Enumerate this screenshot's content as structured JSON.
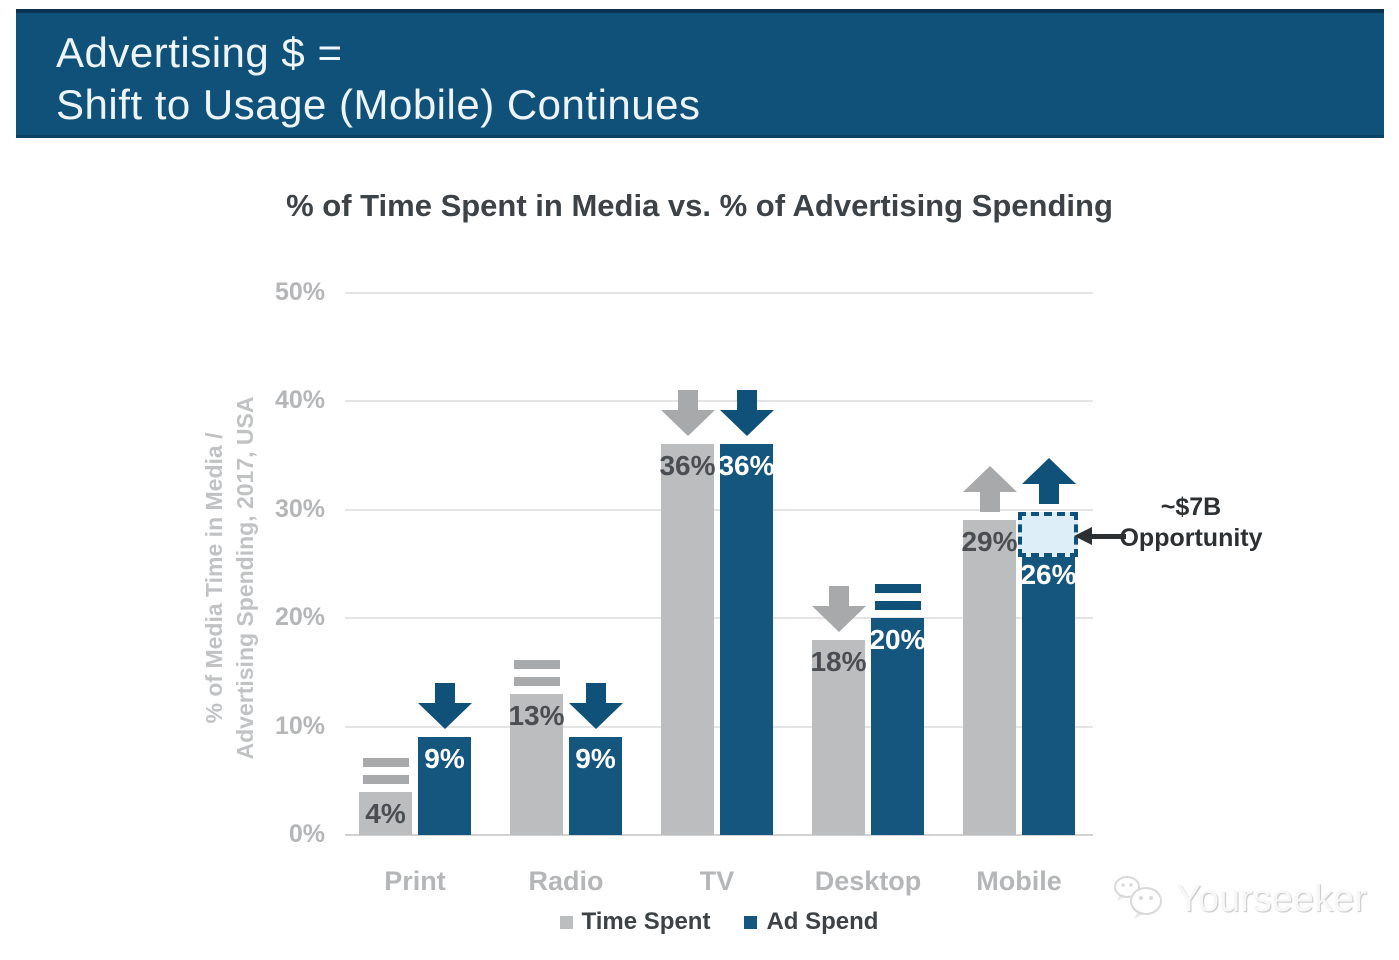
{
  "header": {
    "title_line1": "Advertising $ =",
    "title_line2": "Shift to Usage (Mobile) Continues",
    "background_color": "#0f5179"
  },
  "chart_data": {
    "type": "bar",
    "title": "% of Time Spent in Media vs. % of Advertising Spending",
    "ylabel": "% of Media Time in Media / Advertising Spending, 2017, USA",
    "ylabel_lines": [
      "% of Media Time in Media /",
      "Advertising Spending, 2017, USA"
    ],
    "categories": [
      "Print",
      "Radio",
      "TV",
      "Desktop",
      "Mobile"
    ],
    "series": [
      {
        "name": "Time Spent",
        "color": "#bcbdbe",
        "trend_color": "#a7a9ab",
        "value_label_color": "#4a4e52",
        "values": [
          4,
          13,
          36,
          18,
          29
        ],
        "value_labels": [
          "4%",
          "13%",
          "36%",
          "18%",
          "29%"
        ],
        "trends": [
          "flat",
          "flat",
          "down",
          "down",
          "up"
        ]
      },
      {
        "name": "Ad Spend",
        "color": "#15567f",
        "trend_color": "#0f5179",
        "value_label_color": "#ffffff",
        "values": [
          9,
          9,
          36,
          20,
          26
        ],
        "value_labels": [
          "9%",
          "9%",
          "36%",
          "20%",
          "26%"
        ],
        "trends": [
          "down",
          "down",
          "down",
          "flat",
          "up"
        ]
      }
    ],
    "yticks": [
      {
        "value": 0,
        "label": "0%"
      },
      {
        "value": 10,
        "label": "10%"
      },
      {
        "value": 20,
        "label": "20%"
      },
      {
        "value": 30,
        "label": "30%"
      },
      {
        "value": 40,
        "label": "40%"
      },
      {
        "value": 50,
        "label": "50%"
      }
    ],
    "ylim": [
      0,
      50
    ],
    "grid": true,
    "legend_position": "bottom",
    "annotation": {
      "label_line1": "~$7B",
      "label_line2": "Opportunity",
      "category": "Mobile",
      "series": "Ad Spend",
      "box_top_value": 29.8,
      "box_fill": "#ddeef9",
      "box_border": "#0f5179"
    }
  },
  "watermark": {
    "brand": "Yourseeker"
  }
}
